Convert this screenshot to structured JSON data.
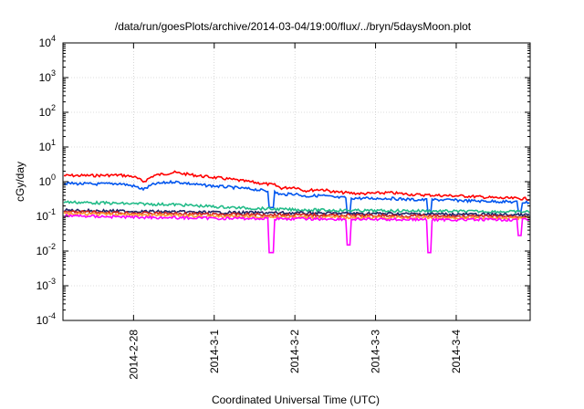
{
  "chart_data": {
    "type": "line",
    "title": "/data/run/goesPlots/archive/2014-03-04/19:00/flux/../bryn/5daysMoon.plot",
    "xlabel": "Coordinated Universal Time (UTC)",
    "ylabel": "cGy/day",
    "y_scale": "log",
    "ylim": [
      0.0001,
      10000
    ],
    "y_ticks": [
      {
        "value": 0.0001,
        "base": "10",
        "exp": "-4"
      },
      {
        "value": 0.001,
        "base": "10",
        "exp": "-3"
      },
      {
        "value": 0.01,
        "base": "10",
        "exp": "-2"
      },
      {
        "value": 0.1,
        "base": "10",
        "exp": "-1"
      },
      {
        "value": 1,
        "base": "10",
        "exp": "0"
      },
      {
        "value": 10,
        "base": "10",
        "exp": "1"
      },
      {
        "value": 100,
        "base": "10",
        "exp": "2"
      },
      {
        "value": 1000,
        "base": "10",
        "exp": "3"
      },
      {
        "value": 10000,
        "base": "10",
        "exp": "4"
      }
    ],
    "xlim": [
      "2014-02-27T03:00",
      "2014-03-04T22:00"
    ],
    "x_ticks": [
      {
        "value": "2014-02-28T00:00",
        "label": "2014-2-28"
      },
      {
        "value": "2014-03-01T00:00",
        "label": "2014-3-1"
      },
      {
        "value": "2014-03-02T00:00",
        "label": "2014-3-2"
      },
      {
        "value": "2014-03-03T00:00",
        "label": "2014-3-3"
      },
      {
        "value": "2014-03-04T00:00",
        "label": "2014-3-4"
      }
    ],
    "grid": true,
    "legend": "none",
    "series": [
      {
        "color": "#ff0000",
        "x": [
          "2014-02-27T03:00",
          "2014-02-27T12:00",
          "2014-02-27T20:00",
          "2014-02-28T00:00",
          "2014-02-28T03:00",
          "2014-02-28T06:00",
          "2014-02-28T12:00",
          "2014-02-28T20:00",
          "2014-03-01T04:00",
          "2014-03-01T12:00",
          "2014-03-01T18:00",
          "2014-03-01T20:00",
          "2014-03-02T00:00",
          "2014-03-02T03:00",
          "2014-03-02T08:00",
          "2014-03-02T12:00",
          "2014-03-02T20:00",
          "2014-03-03T04:00",
          "2014-03-03T12:00",
          "2014-03-03T20:00",
          "2014-03-04T04:00",
          "2014-03-04T12:00",
          "2014-03-04T22:00"
        ],
        "y": [
          1.5,
          1.5,
          1.55,
          1.4,
          1.0,
          1.5,
          1.85,
          1.45,
          1.2,
          0.95,
          0.8,
          0.65,
          0.7,
          0.55,
          0.6,
          0.5,
          0.45,
          0.48,
          0.42,
          0.4,
          0.38,
          0.34,
          0.32
        ]
      },
      {
        "color": "#0055ee",
        "x": [
          "2014-02-27T03:00",
          "2014-02-27T12:00",
          "2014-02-27T20:00",
          "2014-02-28T00:00",
          "2014-02-28T03:00",
          "2014-02-28T06:00",
          "2014-02-28T12:00",
          "2014-02-28T20:00",
          "2014-03-01T04:00",
          "2014-03-01T12:00",
          "2014-03-01T18:00",
          "2014-03-01T20:00",
          "2014-03-02T00:00",
          "2014-03-02T03:00",
          "2014-03-02T08:00",
          "2014-03-02T12:00",
          "2014-03-02T20:00",
          "2014-03-03T04:00",
          "2014-03-03T12:00",
          "2014-03-03T20:00",
          "2014-03-04T04:00",
          "2014-03-04T12:00",
          "2014-03-04T22:00"
        ],
        "y": [
          0.9,
          0.85,
          0.88,
          0.75,
          0.6,
          0.85,
          1.0,
          0.8,
          0.7,
          0.6,
          0.5,
          0.42,
          0.45,
          0.38,
          0.4,
          0.35,
          0.33,
          0.33,
          0.3,
          0.3,
          0.28,
          0.27,
          0.25
        ]
      },
      {
        "color": "#22bb88",
        "x": [
          "2014-02-27T03:00",
          "2014-02-28T00:00",
          "2014-02-28T12:00",
          "2014-03-01T00:00",
          "2014-03-01T12:00",
          "2014-03-02T00:00",
          "2014-03-02T12:00",
          "2014-03-03T00:00",
          "2014-03-03T12:00",
          "2014-03-04T00:00",
          "2014-03-04T22:00"
        ],
        "y": [
          0.26,
          0.23,
          0.22,
          0.19,
          0.17,
          0.155,
          0.15,
          0.145,
          0.145,
          0.14,
          0.135
        ]
      },
      {
        "color": "#222266",
        "x": [
          "2014-02-27T03:00",
          "2014-02-28T00:00",
          "2014-03-01T00:00",
          "2014-03-02T00:00",
          "2014-03-03T00:00",
          "2014-03-04T00:00",
          "2014-03-04T22:00"
        ],
        "y": [
          0.15,
          0.14,
          0.13,
          0.125,
          0.12,
          0.115,
          0.11
        ]
      },
      {
        "color": "#cc2222",
        "x": [
          "2014-02-27T03:00",
          "2014-02-28T00:00",
          "2014-03-01T00:00",
          "2014-03-02T00:00",
          "2014-03-03T00:00",
          "2014-03-04T00:00",
          "2014-03-04T22:00"
        ],
        "y": [
          0.135,
          0.125,
          0.115,
          0.11,
          0.105,
          0.1,
          0.1
        ]
      },
      {
        "color": "#ff9933",
        "x": [
          "2014-02-27T03:00",
          "2014-02-28T00:00",
          "2014-03-01T00:00",
          "2014-03-02T00:00",
          "2014-03-03T00:00",
          "2014-03-04T00:00",
          "2014-03-04T22:00"
        ],
        "y": [
          0.12,
          0.11,
          0.1,
          0.095,
          0.092,
          0.09,
          0.09
        ]
      },
      {
        "color": "#ff00ff",
        "x": [
          "2014-02-27T03:00",
          "2014-02-28T00:00",
          "2014-03-01T00:00",
          "2014-03-02T00:00",
          "2014-03-03T00:00",
          "2014-03-04T00:00",
          "2014-03-04T22:00"
        ],
        "y": [
          0.105,
          0.095,
          0.088,
          0.085,
          0.082,
          0.08,
          0.08
        ]
      }
    ],
    "dips": [
      {
        "x": "2014-03-01T17:00",
        "series_y": {
          "#0055ee": 0.18,
          "#ff00ff": 0.009
        }
      },
      {
        "x": "2014-03-02T16:00",
        "series_y": {
          "#0055ee": 0.12,
          "#ff00ff": 0.015
        }
      },
      {
        "x": "2014-03-03T16:00",
        "series_y": {
          "#0055ee": 0.12,
          "#ff00ff": 0.009
        }
      },
      {
        "x": "2014-03-04T19:00",
        "series_y": {
          "#0055ee": 0.14,
          "#ff00ff": 0.028
        }
      }
    ]
  }
}
